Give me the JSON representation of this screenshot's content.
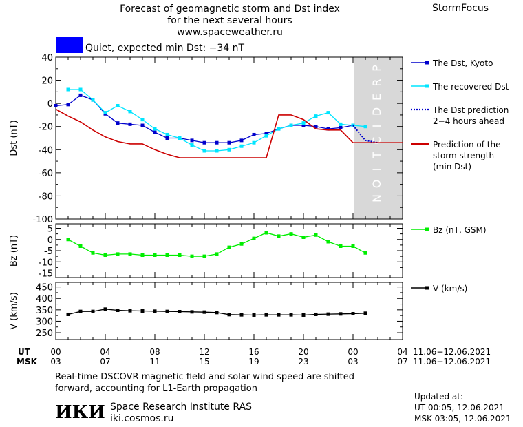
{
  "header": {
    "title_lines": [
      "Forecast of geomagnetic storm and Dst index",
      "for the next several hours",
      "www.spaceweather.ru"
    ],
    "brand": "StormFocus",
    "status_text": "Quiet, expected min Dst: −34 nT",
    "status_color": "#0000ff"
  },
  "prediction_label": "PREDICTION",
  "time_axis": {
    "ut_label": "UT",
    "msk_label": "MSK",
    "ut_ticks": [
      "00",
      "04",
      "08",
      "12",
      "16",
      "20",
      "00",
      "04"
    ],
    "msk_ticks": [
      "03",
      "07",
      "11",
      "15",
      "19",
      "23",
      "03",
      "07"
    ],
    "ut_range": "11.06−12.06.2021",
    "msk_range": "11.06−12.06.2021"
  },
  "footer": {
    "note_lines": [
      "Real-time DSCOVR magnetic field and solar wind speed are shifted",
      "forward, accounting for L1-Earth propagation"
    ],
    "logo_text": "ИКИ",
    "institute": "Space Research Institute RAS",
    "site": "iki.cosmos.ru",
    "updated_label": "Updated at:",
    "updated_ut": "UT   00:05, 12.06.2021",
    "updated_msk": "MSK 03:05, 12.06.2021"
  },
  "chart_data": [
    {
      "type": "line",
      "ylabel": "Dst (nT)",
      "ylim": [
        -100,
        40
      ],
      "xlim": [
        0,
        28
      ],
      "y_ticks": [
        40,
        20,
        0,
        -20,
        -40,
        -60,
        -80,
        -100
      ],
      "prediction_start": 24,
      "legend": [
        {
          "label_lines": [
            "The Dst, Kyoto"
          ],
          "color": "#0000cc",
          "style": "marker"
        },
        {
          "label_lines": [
            "The recovered Dst"
          ],
          "color": "#00e5ff",
          "style": "marker"
        },
        {
          "label_lines": [
            "The Dst prediction",
            "2−4 hours ahead"
          ],
          "color": "#0000cc",
          "style": "dotted"
        },
        {
          "label_lines": [
            "Prediction of the",
            "storm strength",
            "(min Dst)"
          ],
          "color": "#cc0000",
          "style": "solid"
        }
      ],
      "series": [
        {
          "name": "The Dst, Kyoto",
          "color": "#0000cc",
          "x": [
            0,
            1,
            2,
            3,
            4,
            5,
            6,
            7,
            8,
            9,
            10,
            11,
            12,
            13,
            14,
            15,
            16,
            17,
            18,
            19,
            20,
            21,
            22,
            23,
            24
          ],
          "y": [
            -2,
            -1,
            7,
            3,
            -9,
            -17,
            -18,
            -19,
            -25,
            -30,
            -30,
            -32,
            -34,
            -34,
            -34,
            -32,
            -27,
            -26,
            -22,
            -19,
            -19,
            -20,
            -22,
            -21,
            -19
          ]
        },
        {
          "name": "The recovered Dst",
          "color": "#00e5ff",
          "x": [
            1,
            2,
            3,
            4,
            5,
            6,
            7,
            8,
            9,
            10,
            11,
            12,
            13,
            14,
            15,
            16,
            17,
            18,
            19,
            20,
            21,
            22,
            23,
            24,
            25
          ],
          "y": [
            12,
            12,
            3,
            -8,
            -2,
            -7,
            -14,
            -22,
            -27,
            -30,
            -36,
            -41,
            -41,
            -40,
            -37,
            -34,
            -28,
            -22,
            -19,
            -17,
            -11,
            -8,
            -18,
            -19,
            -20
          ]
        },
        {
          "name": "The Dst prediction",
          "color": "#0000cc",
          "style": "dotted",
          "x": [
            24,
            25,
            26
          ],
          "y": [
            -19,
            -32,
            -34
          ]
        },
        {
          "name": "Prediction of the storm strength (min Dst)",
          "color": "#cc0000",
          "x": [
            0,
            1,
            2,
            3,
            4,
            5,
            6,
            7,
            8,
            9,
            10,
            11,
            12,
            13,
            14,
            15,
            16,
            17,
            18,
            19,
            20,
            21,
            22,
            23,
            24,
            25,
            26,
            27,
            28
          ],
          "y": [
            -5,
            -11,
            -16,
            -23,
            -29,
            -33,
            -35,
            -35,
            -40,
            -44,
            -47,
            -47,
            -47,
            -47,
            -47,
            -47,
            -47,
            -47,
            -10,
            -10,
            -14,
            -22,
            -23,
            -23,
            -34,
            -34,
            -34,
            -34,
            -34
          ]
        }
      ]
    },
    {
      "type": "line",
      "ylabel": "Bz (nT)",
      "ylim": [
        -17,
        7
      ],
      "xlim": [
        0,
        28
      ],
      "y_ticks": [
        5,
        0,
        -5,
        -10,
        -15
      ],
      "legend": [
        {
          "label_lines": [
            "Bz (nT, GSM)"
          ],
          "color": "#00ee00",
          "style": "marker"
        }
      ],
      "series": [
        {
          "name": "Bz (nT, GSM)",
          "color": "#00ee00",
          "x": [
            1,
            2,
            3,
            4,
            5,
            6,
            7,
            8,
            9,
            10,
            11,
            12,
            13,
            14,
            15,
            16,
            17,
            18,
            19,
            20,
            21,
            22,
            23,
            24,
            25
          ],
          "y": [
            0,
            -3,
            -6,
            -7,
            -6.5,
            -6.5,
            -7,
            -7,
            -7,
            -7,
            -7.5,
            -7.5,
            -6.5,
            -3.5,
            -2,
            0.5,
            3,
            1.5,
            2.5,
            1,
            2,
            -1,
            -3,
            -3,
            -6
          ]
        }
      ]
    },
    {
      "type": "line",
      "ylabel": "V (km/s)",
      "ylim": [
        220,
        470
      ],
      "xlim": [
        0,
        28
      ],
      "y_ticks": [
        450,
        400,
        350,
        300,
        250
      ],
      "legend": [
        {
          "label_lines": [
            "V (km/s)"
          ],
          "color": "#000000",
          "style": "marker"
        }
      ],
      "series": [
        {
          "name": "V (km/s)",
          "color": "#000000",
          "x": [
            1,
            2,
            3,
            4,
            5,
            6,
            7,
            8,
            9,
            10,
            11,
            12,
            13,
            14,
            15,
            16,
            17,
            18,
            19,
            20,
            21,
            22,
            23,
            24,
            25
          ],
          "y": [
            330,
            343,
            343,
            353,
            348,
            346,
            345,
            344,
            343,
            342,
            341,
            340,
            338,
            329,
            328,
            327,
            328,
            328,
            328,
            327,
            330,
            331,
            332,
            333,
            335
          ]
        }
      ]
    }
  ]
}
